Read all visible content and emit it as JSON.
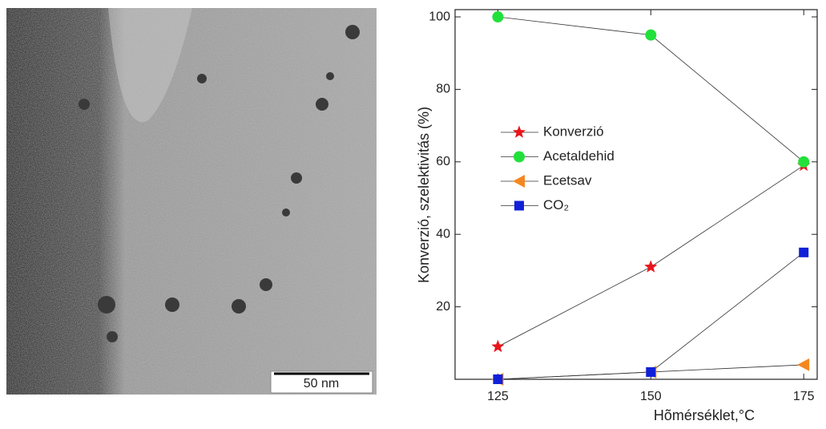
{
  "image": {
    "scale_bar": "50 nm"
  },
  "chart_data": {
    "type": "line",
    "x_label": "Hõmérséklet,°C",
    "y_label": "Konverzió, szelektivitás (%)",
    "x": [
      125,
      150,
      175
    ],
    "xlim": [
      118,
      177.2
    ],
    "xticks": [
      125,
      150,
      175
    ],
    "ylim": [
      0,
      102
    ],
    "yticks": [
      20,
      40,
      60,
      80,
      100
    ],
    "legend": "left",
    "series": [
      {
        "name": "Konverzió",
        "color": "#e8141b",
        "marker": "star",
        "values": [
          9,
          31,
          59
        ]
      },
      {
        "name": "Acetaldehid",
        "color": "#22e03a",
        "marker": "circle",
        "values": [
          100,
          95,
          60
        ]
      },
      {
        "name": "Ecetsav",
        "color": "#f5871f",
        "marker": "triangle",
        "values": [
          0,
          2,
          4
        ]
      },
      {
        "name": "CO₂",
        "color": "#1020d8",
        "marker": "square",
        "values": [
          0,
          2,
          35
        ]
      }
    ]
  }
}
